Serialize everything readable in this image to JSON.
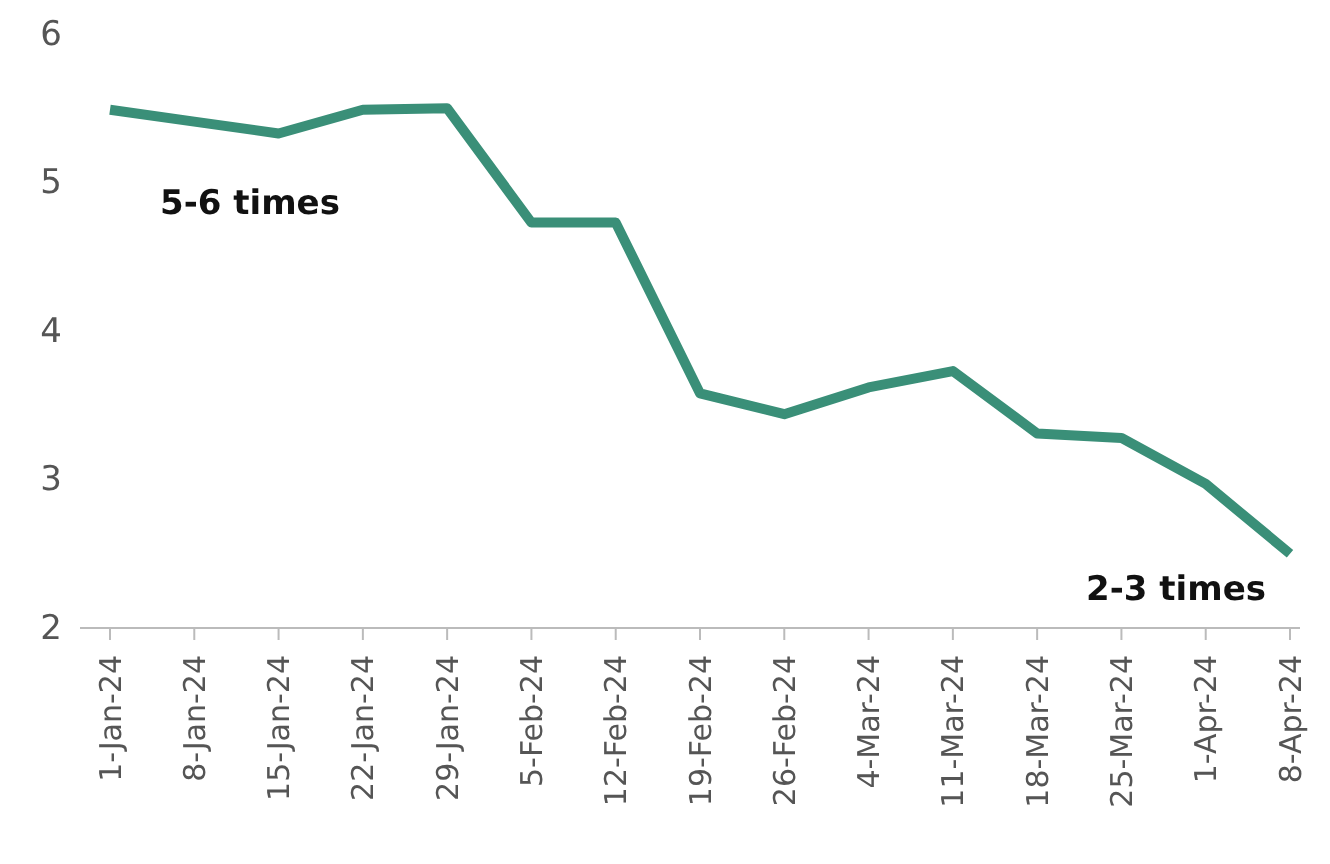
{
  "chart_data": {
    "type": "line",
    "categories": [
      "1-Jan-24",
      "8-Jan-24",
      "15-Jan-24",
      "22-Jan-24",
      "29-Jan-24",
      "5-Feb-24",
      "12-Feb-24",
      "19-Feb-24",
      "26-Feb-24",
      "4-Mar-24",
      "11-Mar-24",
      "18-Mar-24",
      "25-Mar-24",
      "1-Apr-24",
      "8-Apr-24"
    ],
    "series": [
      {
        "color": "#3a8f78",
        "values": [
          5.49,
          5.41,
          5.33,
          5.49,
          5.5,
          4.73,
          4.73,
          3.58,
          3.44,
          3.62,
          3.73,
          3.31,
          3.28,
          2.97,
          2.5
        ]
      }
    ],
    "ylim": [
      2,
      6
    ],
    "yticks": [
      2,
      3,
      4,
      5,
      6
    ],
    "annotations": [
      "5-6 times",
      "2-3 times"
    ],
    "grid": false,
    "marker": "none",
    "line_style": "solid"
  }
}
